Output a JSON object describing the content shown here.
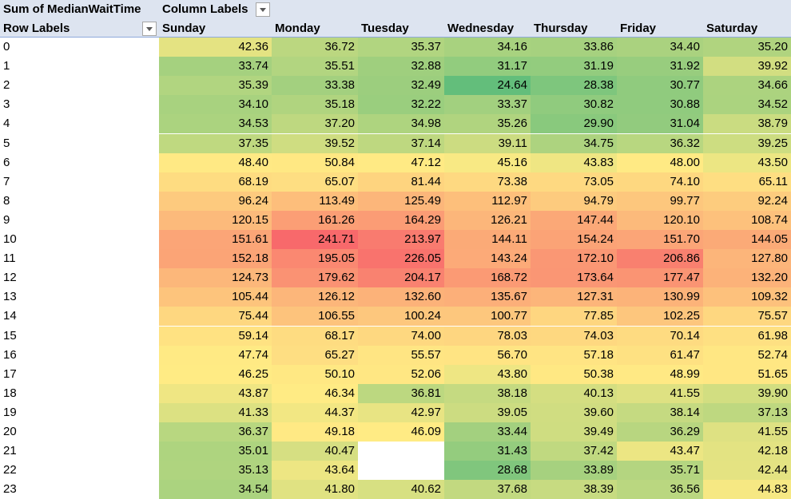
{
  "pivot": {
    "values_field": "Sum of MedianWaitTime",
    "column_labels": "Column Labels",
    "row_labels": "Row Labels",
    "columns": [
      "Sunday",
      "Monday",
      "Tuesday",
      "Wednesday",
      "Thursday",
      "Friday",
      "Saturday"
    ],
    "rows": [
      {
        "label": "0",
        "values": [
          "42.36",
          "36.72",
          "35.37",
          "34.16",
          "33.86",
          "34.40",
          "35.20"
        ]
      },
      {
        "label": "1",
        "values": [
          "33.74",
          "35.51",
          "32.88",
          "31.17",
          "31.19",
          "31.92",
          "39.92"
        ]
      },
      {
        "label": "2",
        "values": [
          "35.39",
          "33.38",
          "32.49",
          "24.64",
          "28.38",
          "30.77",
          "34.66"
        ]
      },
      {
        "label": "3",
        "values": [
          "34.10",
          "35.18",
          "32.22",
          "33.37",
          "30.82",
          "30.88",
          "34.52"
        ]
      },
      {
        "label": "4",
        "values": [
          "34.53",
          "37.20",
          "34.98",
          "35.26",
          "29.90",
          "31.04",
          "38.79"
        ]
      },
      {
        "label": "5",
        "values": [
          "37.35",
          "39.52",
          "37.14",
          "39.11",
          "34.75",
          "36.32",
          "39.25"
        ]
      },
      {
        "label": "6",
        "values": [
          "48.40",
          "50.84",
          "47.12",
          "45.16",
          "43.83",
          "48.00",
          "43.50"
        ]
      },
      {
        "label": "7",
        "values": [
          "68.19",
          "65.07",
          "81.44",
          "73.38",
          "73.05",
          "74.10",
          "65.11"
        ]
      },
      {
        "label": "8",
        "values": [
          "96.24",
          "113.49",
          "125.49",
          "112.97",
          "94.79",
          "99.77",
          "92.24"
        ]
      },
      {
        "label": "9",
        "values": [
          "120.15",
          "161.26",
          "164.29",
          "126.21",
          "147.44",
          "120.10",
          "108.74"
        ]
      },
      {
        "label": "10",
        "values": [
          "151.61",
          "241.71",
          "213.97",
          "144.11",
          "154.24",
          "151.70",
          "144.05"
        ]
      },
      {
        "label": "11",
        "values": [
          "152.18",
          "195.05",
          "226.05",
          "143.24",
          "172.10",
          "206.86",
          "127.80"
        ]
      },
      {
        "label": "12",
        "values": [
          "124.73",
          "179.62",
          "204.17",
          "168.72",
          "173.64",
          "177.47",
          "132.20"
        ]
      },
      {
        "label": "13",
        "values": [
          "105.44",
          "126.12",
          "132.60",
          "135.67",
          "127.31",
          "130.99",
          "109.32"
        ]
      },
      {
        "label": "14",
        "values": [
          "75.44",
          "106.55",
          "100.24",
          "100.77",
          "77.85",
          "102.25",
          "75.57"
        ]
      },
      {
        "label": "15",
        "values": [
          "59.14",
          "68.17",
          "74.00",
          "78.03",
          "74.03",
          "70.14",
          "61.98"
        ]
      },
      {
        "label": "16",
        "values": [
          "47.74",
          "65.27",
          "55.57",
          "56.70",
          "57.18",
          "61.47",
          "52.74"
        ]
      },
      {
        "label": "17",
        "values": [
          "46.25",
          "50.10",
          "52.06",
          "43.80",
          "50.38",
          "48.99",
          "51.65"
        ]
      },
      {
        "label": "18",
        "values": [
          "43.87",
          "46.34",
          "36.81",
          "38.18",
          "40.13",
          "41.55",
          "39.90"
        ]
      },
      {
        "label": "19",
        "values": [
          "41.33",
          "44.37",
          "42.97",
          "39.05",
          "39.60",
          "38.14",
          "37.13"
        ]
      },
      {
        "label": "20",
        "values": [
          "36.37",
          "49.18",
          "46.09",
          "33.44",
          "39.49",
          "36.29",
          "41.55"
        ]
      },
      {
        "label": "21",
        "values": [
          "35.01",
          "40.47",
          "",
          "31.43",
          "37.42",
          "43.47",
          "42.18"
        ]
      },
      {
        "label": "22",
        "values": [
          "35.13",
          "43.64",
          "",
          "28.68",
          "33.89",
          "35.71",
          "42.44"
        ]
      },
      {
        "label": "23",
        "values": [
          "34.54",
          "41.80",
          "40.62",
          "37.68",
          "38.39",
          "36.56",
          "44.83"
        ]
      }
    ]
  },
  "color_scale": {
    "low": "#63be7b",
    "mid": "#ffeb84",
    "high": "#f8696b"
  },
  "icons": {
    "filter_dropdown": "chevron-down-icon"
  }
}
